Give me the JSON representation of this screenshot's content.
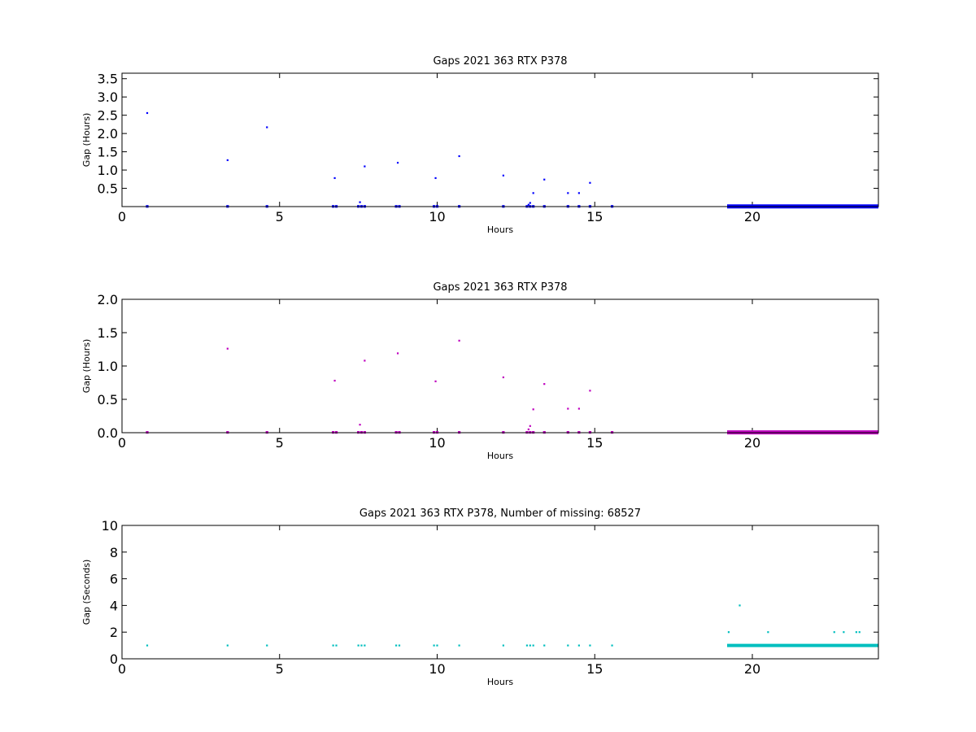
{
  "colors": {
    "panel1": "#0000ff",
    "panel2": "#bf00bf",
    "panel3": "#00bfbf"
  },
  "chart_data": [
    {
      "type": "scatter",
      "title": "Gaps 2021 363 RTX  P378",
      "xlabel": "Hours",
      "ylabel": "Gap (Hours)",
      "xlim": [
        0,
        24
      ],
      "ylim": [
        0,
        3.65
      ],
      "xticks": [
        0,
        5,
        10,
        15,
        20
      ],
      "yticks": [
        0.5,
        1.0,
        1.5,
        2.0,
        2.5,
        3.0,
        3.5
      ],
      "ytick_labels": [
        "0.5",
        "1.0",
        "1.5",
        "2.0",
        "2.5",
        "3.0",
        "3.5"
      ],
      "grid": false,
      "series": [
        {
          "color": "#0000ff",
          "points": [
            [
              0.8,
              2.56
            ],
            [
              3.35,
              1.27
            ],
            [
              4.6,
              2.17
            ],
            [
              6.75,
              0.78
            ],
            [
              7.7,
              1.1
            ],
            [
              8.75,
              1.2
            ],
            [
              9.95,
              0.78
            ],
            [
              10.7,
              1.38
            ],
            [
              12.1,
              0.85
            ],
            [
              13.4,
              0.74
            ],
            [
              13.05,
              0.37
            ],
            [
              14.15,
              0.37
            ],
            [
              14.5,
              0.37
            ],
            [
              14.85,
              0.65
            ],
            [
              7.55,
              0.12
            ],
            [
              12.95,
              0.1
            ],
            [
              12.9,
              0.05
            ],
            [
              0.8,
              0.005
            ],
            [
              3.35,
              0.005
            ],
            [
              4.6,
              0.005
            ],
            [
              6.7,
              0.005
            ],
            [
              6.8,
              0.005
            ],
            [
              7.5,
              0.005
            ],
            [
              7.6,
              0.005
            ],
            [
              7.7,
              0.005
            ],
            [
              8.7,
              0.005
            ],
            [
              8.8,
              0.005
            ],
            [
              9.9,
              0.005
            ],
            [
              10.0,
              0.005
            ],
            [
              10.7,
              0.005
            ],
            [
              12.1,
              0.005
            ],
            [
              12.85,
              0.005
            ],
            [
              12.95,
              0.005
            ],
            [
              13.05,
              0.005
            ],
            [
              13.4,
              0.005
            ],
            [
              14.15,
              0.005
            ],
            [
              14.5,
              0.005
            ],
            [
              14.85,
              0.005
            ],
            [
              15.55,
              0.005
            ]
          ],
          "dense_range": [
            19.2,
            24.0
          ],
          "dense_value": 0.005
        }
      ]
    },
    {
      "type": "scatter",
      "title": "Gaps 2021 363 RTX  P378",
      "xlabel": "Hours",
      "ylabel": "Gap (Hours)",
      "xlim": [
        0,
        24
      ],
      "ylim": [
        0,
        2.0
      ],
      "xticks": [
        0,
        5,
        10,
        15,
        20
      ],
      "yticks": [
        0.0,
        0.5,
        1.0,
        1.5,
        2.0
      ],
      "ytick_labels": [
        "0.0",
        "0.5",
        "1.0",
        "1.5",
        "2.0"
      ],
      "grid": false,
      "series": [
        {
          "color": "#bf00bf",
          "points": [
            [
              3.35,
              1.26
            ],
            [
              6.75,
              0.78
            ],
            [
              7.7,
              1.08
            ],
            [
              8.75,
              1.19
            ],
            [
              9.95,
              0.77
            ],
            [
              10.7,
              1.38
            ],
            [
              12.1,
              0.83
            ],
            [
              13.4,
              0.73
            ],
            [
              13.05,
              0.35
            ],
            [
              14.15,
              0.36
            ],
            [
              14.5,
              0.36
            ],
            [
              14.85,
              0.63
            ],
            [
              7.55,
              0.12
            ],
            [
              12.95,
              0.1
            ],
            [
              12.9,
              0.05
            ],
            [
              0.8,
              0.005
            ],
            [
              3.35,
              0.005
            ],
            [
              4.6,
              0.005
            ],
            [
              6.7,
              0.005
            ],
            [
              6.8,
              0.005
            ],
            [
              7.5,
              0.005
            ],
            [
              7.6,
              0.005
            ],
            [
              7.7,
              0.005
            ],
            [
              8.7,
              0.005
            ],
            [
              8.8,
              0.005
            ],
            [
              9.9,
              0.005
            ],
            [
              10.0,
              0.005
            ],
            [
              10.7,
              0.005
            ],
            [
              12.1,
              0.005
            ],
            [
              12.85,
              0.005
            ],
            [
              12.95,
              0.005
            ],
            [
              13.05,
              0.005
            ],
            [
              13.4,
              0.005
            ],
            [
              14.15,
              0.005
            ],
            [
              14.5,
              0.005
            ],
            [
              14.85,
              0.005
            ],
            [
              15.55,
              0.005
            ]
          ],
          "dense_range": [
            19.2,
            24.0
          ],
          "dense_value": 0.005
        }
      ]
    },
    {
      "type": "scatter",
      "title": "Gaps 2021 363 RTX  P378, Number of missing: 68527",
      "xlabel": "Hours",
      "ylabel": "Gap (Seconds)",
      "xlim": [
        0,
        24
      ],
      "ylim": [
        0,
        10
      ],
      "xticks": [
        0,
        5,
        10,
        15,
        20
      ],
      "yticks": [
        0,
        2,
        4,
        6,
        8,
        10
      ],
      "ytick_labels": [
        "0",
        "2",
        "4",
        "6",
        "8",
        "10"
      ],
      "grid": false,
      "series": [
        {
          "color": "#00bfbf",
          "points": [
            [
              0.8,
              1
            ],
            [
              3.35,
              1
            ],
            [
              4.6,
              1
            ],
            [
              6.7,
              1
            ],
            [
              6.8,
              1
            ],
            [
              7.5,
              1
            ],
            [
              7.6,
              1
            ],
            [
              7.7,
              1
            ],
            [
              8.7,
              1
            ],
            [
              8.8,
              1
            ],
            [
              9.9,
              1
            ],
            [
              10.0,
              1
            ],
            [
              10.7,
              1
            ],
            [
              12.1,
              1
            ],
            [
              12.85,
              1
            ],
            [
              12.95,
              1
            ],
            [
              13.05,
              1
            ],
            [
              13.4,
              1
            ],
            [
              14.15,
              1
            ],
            [
              14.5,
              1
            ],
            [
              14.85,
              1
            ],
            [
              15.55,
              1
            ],
            [
              19.25,
              2
            ],
            [
              19.6,
              4
            ],
            [
              20.5,
              2
            ],
            [
              22.6,
              2
            ],
            [
              22.9,
              2
            ],
            [
              23.3,
              2
            ],
            [
              23.4,
              2
            ]
          ],
          "dense_range": [
            19.2,
            24.0
          ],
          "dense_value": 1
        }
      ]
    }
  ]
}
